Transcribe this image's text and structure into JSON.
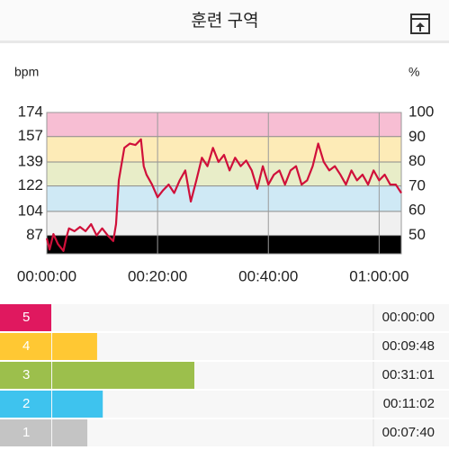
{
  "header": {
    "title": "훈련 구역"
  },
  "chart_data": {
    "type": "line",
    "y_label": "bpm",
    "y2_label": "%",
    "x": [
      0,
      0.5,
      1.2,
      2,
      3,
      3.5,
      4,
      5,
      6,
      7,
      8,
      9,
      10,
      11,
      12,
      12.5,
      13,
      14,
      15,
      16,
      17,
      17.5,
      18,
      19,
      20,
      21,
      22,
      23,
      24,
      25,
      26,
      27,
      28,
      29,
      30,
      31,
      32,
      33,
      34,
      35,
      36,
      37,
      38,
      39,
      40,
      41,
      42,
      43,
      44,
      45,
      46,
      47,
      48,
      49,
      50,
      51,
      52,
      53,
      54,
      55,
      56,
      57,
      58,
      59,
      60,
      61,
      62,
      63,
      64
    ],
    "series": [
      {
        "color": "#d0103a",
        "values": [
          85,
          77,
          88,
          81,
          76,
          85,
          92,
          90,
          93,
          90,
          95,
          87,
          92,
          87,
          83,
          95,
          126,
          149,
          152,
          151,
          155,
          136,
          130,
          123,
          114,
          119,
          123,
          117,
          126,
          133,
          111,
          126,
          142,
          136,
          149,
          139,
          144,
          133,
          142,
          136,
          140,
          133,
          120,
          136,
          123,
          130,
          133,
          123,
          133,
          136,
          123,
          126,
          136,
          152,
          139,
          133,
          136,
          130,
          123,
          133,
          126,
          130,
          123,
          133,
          126,
          130,
          123,
          123,
          117
        ]
      }
    ],
    "xlim": [
      0,
      64
    ],
    "xticks": [
      {
        "value": 0,
        "label": "00:00:00"
      },
      {
        "value": 20,
        "label": "00:20:00"
      },
      {
        "value": 40,
        "label": "00:40:00"
      },
      {
        "value": 60,
        "label": "01:00:00"
      }
    ],
    "ylim": [
      74,
      174
    ],
    "yticks": [
      174,
      157,
      139,
      122,
      104,
      87
    ],
    "y2lim": [
      42.5,
      100
    ],
    "y2ticks": [
      100,
      90,
      80,
      70,
      60,
      50
    ],
    "zone_colors": [
      "#f7bed3",
      "#fdebb7",
      "#e8edc8",
      "#cfe9f5",
      "#f0f0f0"
    ]
  },
  "zones": {
    "labels": [
      "5",
      "4",
      "3",
      "2",
      "1"
    ],
    "values": [
      0,
      588,
      1861,
      662,
      460
    ],
    "value_labels": [
      "00:00:00",
      "00:09:48",
      "00:31:01",
      "00:11:02",
      "00:07:40"
    ],
    "colors": [
      "#e0185f",
      "#ffc833",
      "#9cbf4c",
      "#3ec3ee",
      "#c4c4c4"
    ]
  }
}
